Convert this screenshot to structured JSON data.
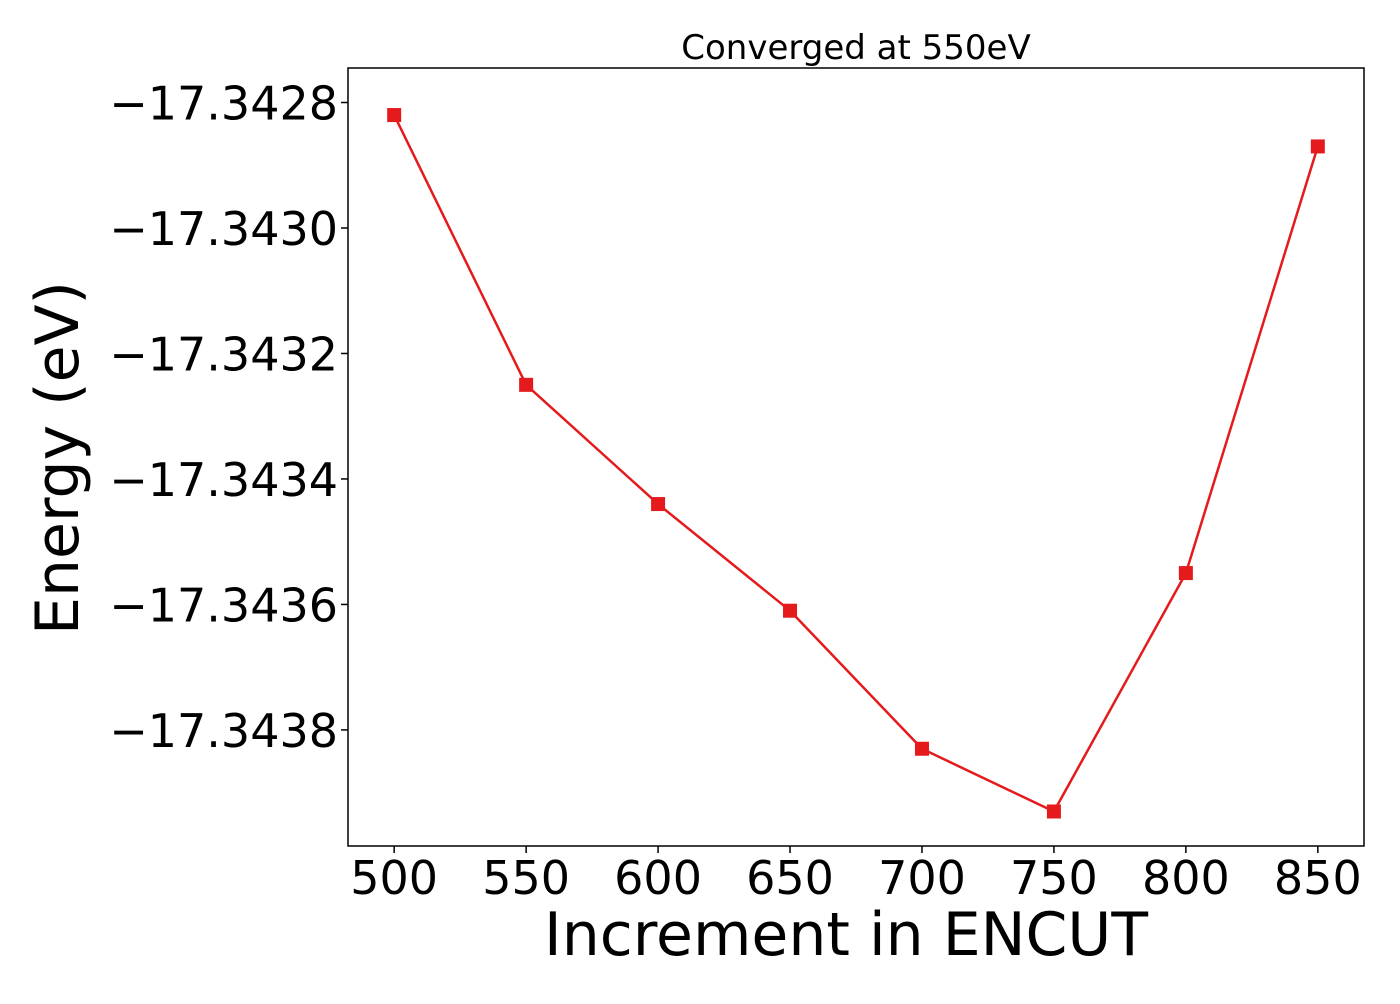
{
  "chart_data": {
    "type": "line",
    "title": "Converged at 550eV",
    "xlabel": "Increment in ENCUT",
    "ylabel": "Energy (eV)",
    "x": [
      500,
      550,
      600,
      650,
      700,
      750,
      800,
      850
    ],
    "series": [
      {
        "values": [
          -17.34282,
          -17.34325,
          -17.34344,
          -17.34361,
          -17.34383,
          -17.34393,
          -17.34355,
          -17.34287
        ],
        "color": "#e41a1c",
        "marker": "square"
      }
    ],
    "xlim": [
      482.5,
      867.5
    ],
    "ylim": [
      -17.343985,
      -17.342745
    ],
    "xticks": [
      500,
      550,
      600,
      650,
      700,
      750,
      800,
      850
    ],
    "xtick_labels": [
      "500",
      "550",
      "600",
      "650",
      "700",
      "750",
      "800",
      "850"
    ],
    "yticks": [
      -17.3428,
      -17.343,
      -17.3432,
      -17.3434,
      -17.3436,
      -17.3438
    ],
    "ytick_labels": [
      "−17.3428",
      "−17.3430",
      "−17.3432",
      "−17.3434",
      "−17.3436",
      "−17.3438"
    ],
    "grid": false,
    "legend": false
  }
}
